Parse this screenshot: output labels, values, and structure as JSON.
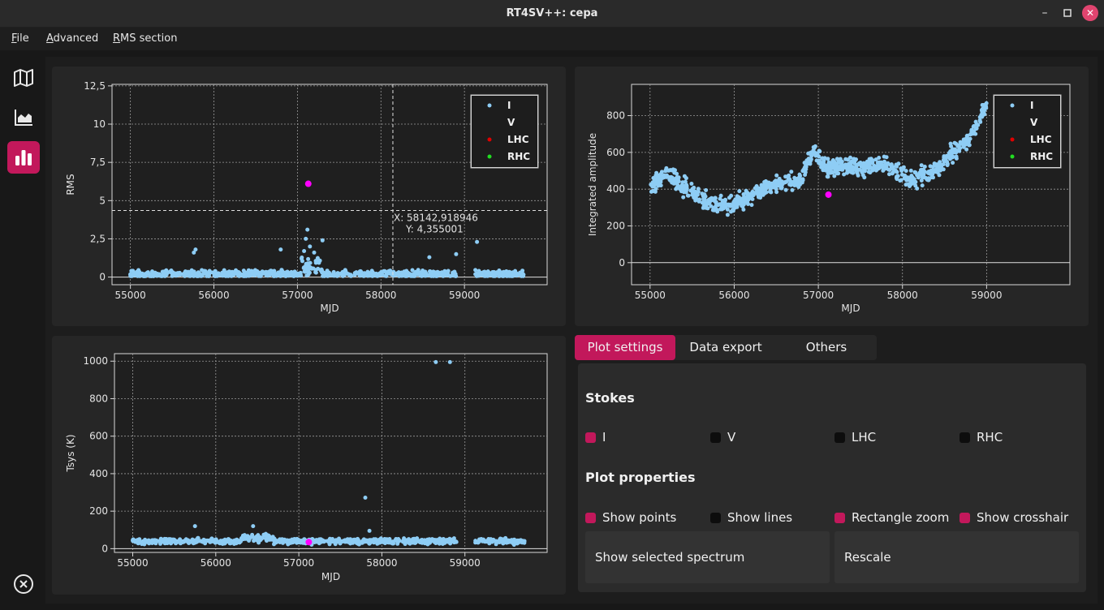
{
  "window": {
    "title": "RT4SV++: cepa",
    "min_icon": "minimize-icon",
    "max_icon": "maximize-icon",
    "close_icon": "close-icon"
  },
  "menu": [
    {
      "accel": "F",
      "rest": "ile"
    },
    {
      "accel": "A",
      "rest": "dvanced"
    },
    {
      "accel": "R",
      "rest": "MS section"
    }
  ],
  "sidebar": {
    "items": [
      {
        "icon": "map-icon",
        "active": false
      },
      {
        "icon": "area-chart-icon",
        "active": false
      },
      {
        "icon": "bar-chart-icon",
        "active": true
      }
    ],
    "bottom_icon": "exit-icon"
  },
  "colors": {
    "accent": "#c2185b",
    "series_I": "#8ecdf5",
    "highlight": "#ff00ff",
    "LHC": "#e00000",
    "RHC": "#22dd22"
  },
  "legend": [
    {
      "label": "I",
      "color": "#8ecdf5"
    },
    {
      "label": "V",
      "color": "#ffffff"
    },
    {
      "label": "LHC",
      "color": "#e00000"
    },
    {
      "label": "RHC",
      "color": "#22dd22"
    }
  ],
  "chart_data": [
    {
      "type": "scatter",
      "ylabel": "RMS",
      "xlabel": "MJD",
      "xlim": [
        54780,
        59990
      ],
      "ylim": [
        -0.5,
        12.6
      ],
      "xticks": [
        "55000",
        "56000",
        "57000",
        "58000",
        "59000"
      ],
      "yticks": [
        "0",
        "2,5",
        "5",
        "7,5",
        "10",
        "12,5"
      ],
      "grid": true,
      "legend_position": "top-right",
      "series": [
        {
          "name": "I",
          "baseline": 0.2,
          "noise": 0.18,
          "spikes": [
            [
              55780,
              1.8
            ],
            [
              55760,
              1.6
            ],
            [
              56800,
              1.8
            ],
            [
              57050,
              1.2
            ],
            [
              57080,
              1.7
            ],
            [
              57100,
              2.5
            ],
            [
              57120,
              3.1
            ],
            [
              57150,
              2.0
            ],
            [
              57200,
              1.6
            ],
            [
              57300,
              2.4
            ],
            [
              58580,
              1.3
            ],
            [
              58900,
              1.5
            ],
            [
              59150,
              2.3
            ]
          ]
        },
        {
          "name": "highlight",
          "points": [
            [
              57130,
              6.1
            ]
          ]
        }
      ],
      "crosshair": {
        "x": 58142.918946,
        "y": 4.355001,
        "label_x": "X: 58142,918946",
        "label_y": "Y: 4,355001"
      }
    },
    {
      "type": "scatter",
      "ylabel": "Integrated amplitude",
      "xlabel": "MJD",
      "xlim": [
        54780,
        59990
      ],
      "ylim": [
        -120,
        970
      ],
      "xticks": [
        "55000",
        "56000",
        "57000",
        "58000",
        "59000"
      ],
      "yticks": [
        "0",
        "200",
        "400",
        "600",
        "800"
      ],
      "grid": true,
      "legend_position": "top-right",
      "series": [
        {
          "name": "I",
          "trend": [
            [
              55000,
              410
            ],
            [
              55200,
              480
            ],
            [
              55500,
              380
            ],
            [
              55700,
              330
            ],
            [
              55950,
              300
            ],
            [
              56200,
              360
            ],
            [
              56500,
              430
            ],
            [
              56800,
              450
            ],
            [
              56950,
              620
            ],
            [
              57100,
              520
            ],
            [
              57400,
              520
            ],
            [
              57800,
              530
            ],
            [
              58100,
              450
            ],
            [
              58400,
              500
            ],
            [
              58600,
              600
            ],
            [
              58800,
              680
            ],
            [
              59000,
              860
            ]
          ],
          "noise": 40
        },
        {
          "name": "highlight",
          "points": [
            [
              57120,
              370
            ]
          ]
        }
      ]
    },
    {
      "type": "scatter",
      "ylabel": "Tsys (K)",
      "xlabel": "MJD",
      "xlim": [
        54780,
        59990
      ],
      "ylim": [
        -20,
        1040
      ],
      "xticks": [
        "55000",
        "56000",
        "57000",
        "58000",
        "59000"
      ],
      "yticks": [
        "0",
        "200",
        "400",
        "600",
        "800",
        "1000"
      ],
      "grid": true,
      "series": [
        {
          "name": "I",
          "baseline": 40,
          "noise": 12,
          "extra": [
            [
              58650,
              995
            ],
            [
              58820,
              995
            ],
            [
              57800,
              272
            ],
            [
              57850,
              95
            ],
            [
              55750,
              120
            ],
            [
              56450,
              120
            ]
          ]
        },
        {
          "name": "highlight",
          "points": [
            [
              57120,
              35
            ]
          ]
        }
      ]
    }
  ],
  "tabs": [
    "Plot settings",
    "Data export",
    "Others"
  ],
  "settings": {
    "stokes_title": "Stokes",
    "stokes": [
      {
        "label": "I",
        "checked": true
      },
      {
        "label": "V",
        "checked": false
      },
      {
        "label": "LHC",
        "checked": false
      },
      {
        "label": "RHC",
        "checked": false
      }
    ],
    "props_title": "Plot properties",
    "props": [
      {
        "label": "Show points",
        "checked": true
      },
      {
        "label": "Show lines",
        "checked": false
      },
      {
        "label": "Rectangle zoom",
        "checked": true
      },
      {
        "label": "Show crosshair",
        "checked": true
      }
    ],
    "buttons": [
      "Show selected spectrum",
      "Rescale"
    ]
  }
}
